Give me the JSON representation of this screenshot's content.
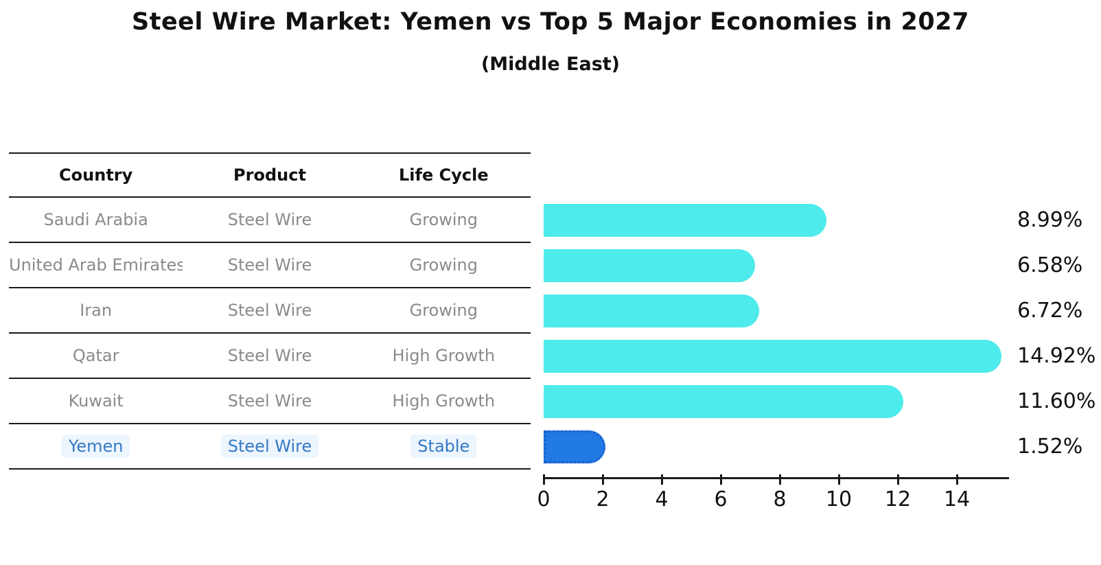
{
  "title": "Steel Wire Market: Yemen vs Top 5 Major Economies in 2027",
  "subtitle": "(Middle East)",
  "table": {
    "headers": [
      "Country",
      "Product",
      "Life Cycle"
    ],
    "rows": [
      {
        "country": "Saudi Arabia",
        "product": "Steel Wire",
        "life_cycle": "Growing",
        "highlight": false
      },
      {
        "country": "United Arab Emirates",
        "product": "Steel Wire",
        "life_cycle": "Growing",
        "highlight": false
      },
      {
        "country": "Iran",
        "product": "Steel Wire",
        "life_cycle": "Growing",
        "highlight": false
      },
      {
        "country": "Qatar",
        "product": "Steel Wire",
        "life_cycle": "High Growth",
        "highlight": false
      },
      {
        "country": "Kuwait",
        "product": "Steel Wire",
        "life_cycle": "High Growth",
        "highlight": false
      },
      {
        "country": "Yemen",
        "product": "Steel Wire",
        "life_cycle": "Stable",
        "highlight": true
      }
    ]
  },
  "chart_data": {
    "type": "bar",
    "orientation": "horizontal",
    "categories": [
      "Saudi Arabia",
      "United Arab Emirates",
      "Iran",
      "Qatar",
      "Kuwait",
      "Yemen"
    ],
    "values": [
      8.99,
      6.58,
      6.72,
      14.92,
      11.6,
      1.52
    ],
    "value_labels": [
      "8.99%",
      "6.58%",
      "6.72%",
      "14.92%",
      "11.60%",
      "1.52%"
    ],
    "title": "Steel Wire Market: Yemen vs Top 5 Major Economies in 2027",
    "xlabel": "",
    "ylabel": "",
    "xlim": [
      0,
      15.7
    ],
    "x_ticks": [
      0,
      2,
      4,
      6,
      8,
      10,
      12,
      14
    ],
    "grid": false,
    "legend": "none",
    "bar_color": "#4debeb",
    "highlight_bar_color": "#2179e2",
    "highlight_bar_border_color": "#1b60cf",
    "highlight_index": 5
  },
  "colors": {
    "text": "#111111",
    "table_text": "#8a8a8a",
    "highlight_text": "#3379c5",
    "axis": "#1a1a1a"
  }
}
